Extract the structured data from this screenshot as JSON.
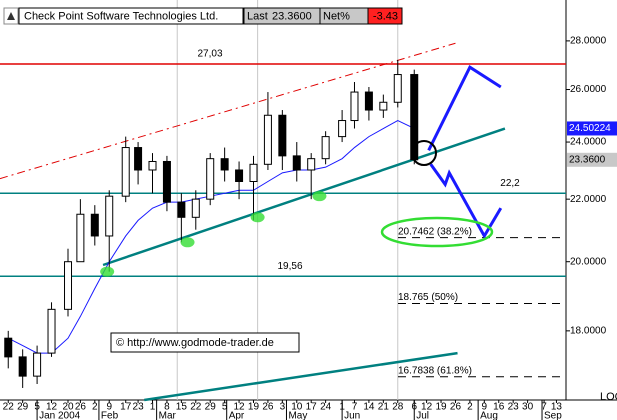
{
  "chart_data": {
    "type": "candlestick",
    "header": {
      "title": "Check Point Software Technologies Ltd.",
      "last_label": "Last",
      "last": "23.3600",
      "net_label": "Net%",
      "net": "-3.43"
    },
    "x": [
      0,
      7,
      14,
      21,
      29,
      35,
      42,
      49,
      57,
      63,
      70,
      77,
      84,
      91,
      98,
      105,
      112,
      119,
      126,
      133,
      140,
      147,
      154,
      162,
      168,
      175,
      182,
      189,
      197
    ],
    "open": [
      17.8,
      17.3,
      16.8,
      17.4,
      18.6,
      20.0,
      21.5,
      20.8,
      22.1,
      23.8,
      23.0,
      23.3,
      21.9,
      21.4,
      22.0,
      23.4,
      23.0,
      22.6,
      23.2,
      25.0,
      23.5,
      23.0,
      23.4,
      24.2,
      24.8,
      25.9,
      25.2,
      25.5,
      26.6
    ],
    "high": [
      18.0,
      17.5,
      17.6,
      18.8,
      20.4,
      22.0,
      21.8,
      22.3,
      24.2,
      24.0,
      23.6,
      23.5,
      22.2,
      22.3,
      23.6,
      23.8,
      23.3,
      23.5,
      25.9,
      25.2,
      24.0,
      23.6,
      24.4,
      25.2,
      26.3,
      26.1,
      25.8,
      27.2,
      26.8
    ],
    "low": [
      17.0,
      16.5,
      16.6,
      17.3,
      18.4,
      20.0,
      20.5,
      19.7,
      21.9,
      22.5,
      22.2,
      21.6,
      20.6,
      21.0,
      21.8,
      22.6,
      22.0,
      21.3,
      23.0,
      23.0,
      22.6,
      22.0,
      23.2,
      24.0,
      24.5,
      24.8,
      24.9,
      25.3,
      23.2
    ],
    "close": [
      17.3,
      16.8,
      17.4,
      18.6,
      20.0,
      21.5,
      20.8,
      22.1,
      23.8,
      23.0,
      23.3,
      21.9,
      21.4,
      22.0,
      23.4,
      23.0,
      22.6,
      23.2,
      25.0,
      23.5,
      23.0,
      23.4,
      24.2,
      24.8,
      25.9,
      25.2,
      25.5,
      26.6,
      23.36
    ],
    "moving_average": {
      "color": "#1a1aff",
      "values": [
        17.8,
        17.6,
        17.4,
        17.4,
        17.8,
        18.4,
        19.2,
        20.0,
        20.8,
        21.3,
        21.7,
        21.9,
        21.9,
        22.0,
        22.1,
        22.2,
        22.3,
        22.3,
        22.6,
        22.9,
        23.0,
        23.0,
        23.1,
        23.4,
        23.8,
        24.2,
        24.5,
        24.8,
        24.50224
      ],
      "last_label": "24.50224"
    },
    "xlim": [
      -4,
      275
    ],
    "ylim": [
      16.2,
      29.8
    ],
    "log_scale": true,
    "yticks": [
      {
        "value": 18,
        "label": "18.0000"
      },
      {
        "value": 20,
        "label": "20.0000"
      },
      {
        "value": 22,
        "label": "22.0000"
      },
      {
        "value": 24,
        "label": "24.0000"
      },
      {
        "value": 26,
        "label": "26.0000"
      },
      {
        "value": 28,
        "label": "28.0000"
      }
    ],
    "xticks": [
      {
        "value": 0,
        "label": "22"
      },
      {
        "value": 7,
        "label": "29"
      },
      {
        "value": 14,
        "label": "5"
      },
      {
        "value": 21,
        "label": "12"
      },
      {
        "value": 29,
        "label": "20"
      },
      {
        "value": 35,
        "label": "26"
      },
      {
        "value": 42,
        "label": "2"
      },
      {
        "value": 49,
        "label": "9"
      },
      {
        "value": 57,
        "label": "17"
      },
      {
        "value": 63,
        "label": "23"
      },
      {
        "value": 70,
        "label": "1"
      },
      {
        "value": 77,
        "label": "8"
      },
      {
        "value": 84,
        "label": "15"
      },
      {
        "value": 91,
        "label": "22"
      },
      {
        "value": 98,
        "label": "29"
      },
      {
        "value": 105,
        "label": "5"
      },
      {
        "value": 112,
        "label": "12"
      },
      {
        "value": 119,
        "label": "19"
      },
      {
        "value": 126,
        "label": "26"
      },
      {
        "value": 133,
        "label": "3"
      },
      {
        "value": 140,
        "label": "10"
      },
      {
        "value": 147,
        "label": "17"
      },
      {
        "value": 154,
        "label": "24"
      },
      {
        "value": 162,
        "label": "1"
      },
      {
        "value": 168,
        "label": "7"
      },
      {
        "value": 175,
        "label": "14"
      },
      {
        "value": 182,
        "label": "21"
      },
      {
        "value": 189,
        "label": "28"
      },
      {
        "value": 197,
        "label": "6"
      },
      {
        "value": 203,
        "label": "12"
      },
      {
        "value": 210,
        "label": "19"
      },
      {
        "value": 217,
        "label": "26"
      },
      {
        "value": 224,
        "label": "2"
      },
      {
        "value": 231,
        "label": "9"
      },
      {
        "value": 238,
        "label": "16"
      },
      {
        "value": 245,
        "label": "23"
      },
      {
        "value": 252,
        "label": "30"
      },
      {
        "value": 260,
        "label": "7"
      },
      {
        "value": 266,
        "label": "13"
      }
    ],
    "month_ticks": [
      {
        "value": 14,
        "label": "Jan 2004"
      },
      {
        "value": 44,
        "label": "Feb"
      },
      {
        "value": 72,
        "label": "Mar"
      },
      {
        "value": 106,
        "label": "Apr"
      },
      {
        "value": 135,
        "label": "May"
      },
      {
        "value": 162,
        "label": "Jun"
      },
      {
        "value": 197,
        "label": "Jul"
      },
      {
        "value": 228,
        "label": "Aug"
      },
      {
        "value": 259,
        "label": "Sep"
      }
    ],
    "vlines": [
      82,
      121,
      189
    ],
    "hlines": [
      {
        "value": 27.03,
        "label": "27,03",
        "color": "#e00000"
      },
      {
        "value": 22.2,
        "label": "22,2",
        "color": "#008080"
      },
      {
        "value": 19.56,
        "label": "19,56",
        "color": "#008080"
      }
    ],
    "fib_levels": [
      {
        "value": 20.7462,
        "label": "20.7462 (38.2%)"
      },
      {
        "value": 18.765,
        "label": "18.765 (50%)"
      },
      {
        "value": 16.7838,
        "label": "16.7838 (61.8%)"
      }
    ],
    "trendlines": [
      {
        "x": [
          46,
          241
        ],
        "y": [
          19.9,
          24.5
        ],
        "color": "#008080",
        "dashed": false
      },
      {
        "x": [
          -4,
          217
        ],
        "y": [
          22.7,
          27.9
        ],
        "color": "#e00000",
        "dashed": true
      },
      {
        "x": [
          66,
          218
        ],
        "y": [
          16.2,
          17.4
        ],
        "color": "#008080",
        "dashed": false
      }
    ],
    "projections": [
      {
        "x": [
          204,
          224,
          239
        ],
        "y": [
          23.7,
          26.9,
          26.1
        ],
        "color": "#1a1aff"
      },
      {
        "x": [
          205,
          212,
          214,
          231,
          239
        ],
        "y": [
          23.2,
          22.5,
          22.9,
          20.8,
          21.7
        ],
        "color": "#1a1aff"
      }
    ],
    "touch_points": {
      "x": [
        48,
        87,
        121,
        151
      ],
      "y": [
        19.7,
        20.6,
        21.4,
        22.1
      ],
      "color": "#33dd33"
    },
    "copyright": "© http://www.godmode-trader.de",
    "scale_label": "LOG"
  }
}
